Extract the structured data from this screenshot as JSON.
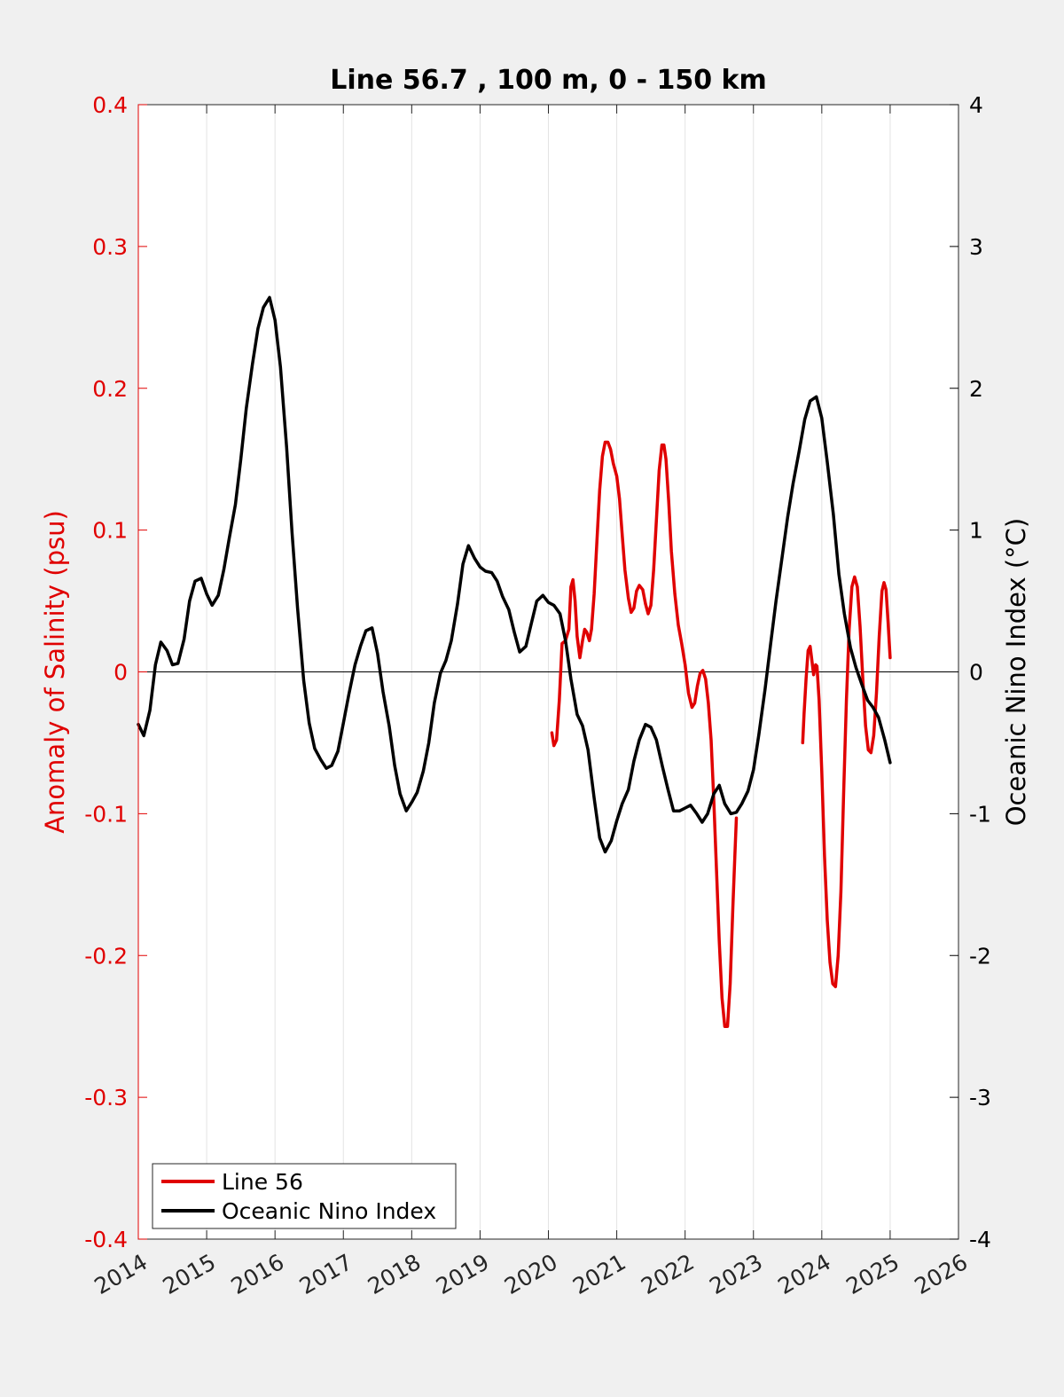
{
  "chart_data": {
    "type": "line",
    "title": "Line 56.7 , 100 m, 0 - 150 km",
    "xlabel": "",
    "ylabel_left": "Anomaly of Salinity (psu)",
    "ylabel_right": "Oceanic Nino Index (°C)",
    "xlim": [
      2014,
      2026
    ],
    "ylim_left": [
      -0.4,
      0.4
    ],
    "ylim_right": [
      -4,
      4
    ],
    "x_ticks": [
      "2014",
      "2015",
      "2016",
      "2017",
      "2018",
      "2019",
      "2020",
      "2021",
      "2022",
      "2023",
      "2024",
      "2025",
      "2026"
    ],
    "y_ticks_left": [
      "-0.4",
      "-0.3",
      "-0.2",
      "-0.1",
      "0",
      "0.1",
      "0.2",
      "0.3",
      "0.4"
    ],
    "y_ticks_right": [
      "-4",
      "-3",
      "-2",
      "-1",
      "0",
      "1",
      "2",
      "3",
      "4"
    ],
    "grid": "vertical",
    "zero_line": 0,
    "legend_position": "bottom-left",
    "colors": {
      "salinity": "#e00000",
      "oni": "#000000",
      "left_axis": "#e00000",
      "right_axis": "#000000"
    },
    "series": [
      {
        "name": "Line 56",
        "axis": "left",
        "segments": [
          [
            [
              2020.05,
              -0.043
            ],
            [
              2020.08,
              -0.052
            ],
            [
              2020.12,
              -0.048
            ],
            [
              2020.16,
              -0.02
            ],
            [
              2020.2,
              0.02
            ],
            [
              2020.25,
              0.022
            ],
            [
              2020.3,
              0.03
            ],
            [
              2020.33,
              0.06
            ],
            [
              2020.36,
              0.065
            ],
            [
              2020.39,
              0.05
            ],
            [
              2020.42,
              0.025
            ],
            [
              2020.46,
              0.01
            ],
            [
              2020.5,
              0.022
            ],
            [
              2020.53,
              0.03
            ],
            [
              2020.56,
              0.028
            ],
            [
              2020.6,
              0.022
            ],
            [
              2020.63,
              0.03
            ],
            [
              2020.67,
              0.055
            ],
            [
              2020.71,
              0.092
            ],
            [
              2020.75,
              0.128
            ],
            [
              2020.79,
              0.152
            ],
            [
              2020.83,
              0.162
            ],
            [
              2020.87,
              0.162
            ],
            [
              2020.91,
              0.157
            ],
            [
              2020.95,
              0.147
            ],
            [
              2021.0,
              0.138
            ],
            [
              2021.04,
              0.122
            ],
            [
              2021.08,
              0.097
            ],
            [
              2021.12,
              0.072
            ],
            [
              2021.17,
              0.052
            ],
            [
              2021.21,
              0.042
            ],
            [
              2021.25,
              0.045
            ],
            [
              2021.29,
              0.057
            ],
            [
              2021.33,
              0.061
            ],
            [
              2021.38,
              0.058
            ],
            [
              2021.42,
              0.048
            ],
            [
              2021.46,
              0.041
            ],
            [
              2021.5,
              0.047
            ],
            [
              2021.54,
              0.072
            ],
            [
              2021.58,
              0.107
            ],
            [
              2021.62,
              0.142
            ],
            [
              2021.66,
              0.16
            ],
            [
              2021.69,
              0.16
            ],
            [
              2021.72,
              0.15
            ],
            [
              2021.76,
              0.12
            ],
            [
              2021.8,
              0.085
            ],
            [
              2021.85,
              0.055
            ],
            [
              2021.9,
              0.033
            ],
            [
              2021.95,
              0.02
            ],
            [
              2022.0,
              0.005
            ],
            [
              2022.05,
              -0.015
            ],
            [
              2022.1,
              -0.025
            ],
            [
              2022.14,
              -0.022
            ],
            [
              2022.18,
              -0.01
            ],
            [
              2022.22,
              -0.001
            ],
            [
              2022.26,
              0.001
            ],
            [
              2022.3,
              -0.005
            ],
            [
              2022.34,
              -0.022
            ],
            [
              2022.38,
              -0.048
            ],
            [
              2022.42,
              -0.09
            ],
            [
              2022.46,
              -0.14
            ],
            [
              2022.5,
              -0.19
            ],
            [
              2022.54,
              -0.23
            ],
            [
              2022.58,
              -0.25
            ],
            [
              2022.62,
              -0.25
            ],
            [
              2022.66,
              -0.22
            ],
            [
              2022.7,
              -0.165
            ],
            [
              2022.73,
              -0.128
            ],
            [
              2022.75,
              -0.103
            ]
          ],
          [
            [
              2023.72,
              -0.05
            ],
            [
              2023.74,
              -0.03
            ],
            [
              2023.77,
              -0.005
            ],
            [
              2023.8,
              0.015
            ],
            [
              2023.83,
              0.018
            ],
            [
              2023.85,
              0.01
            ],
            [
              2023.88,
              -0.002
            ],
            [
              2023.91,
              0.005
            ],
            [
              2023.93,
              0.004
            ],
            [
              2023.96,
              -0.02
            ],
            [
              2024.0,
              -0.07
            ],
            [
              2024.04,
              -0.13
            ],
            [
              2024.08,
              -0.175
            ],
            [
              2024.12,
              -0.205
            ],
            [
              2024.16,
              -0.22
            ],
            [
              2024.2,
              -0.222
            ],
            [
              2024.24,
              -0.2
            ],
            [
              2024.28,
              -0.155
            ],
            [
              2024.32,
              -0.085
            ],
            [
              2024.36,
              -0.02
            ],
            [
              2024.4,
              0.03
            ],
            [
              2024.44,
              0.06
            ],
            [
              2024.48,
              0.067
            ],
            [
              2024.52,
              0.06
            ],
            [
              2024.56,
              0.032
            ],
            [
              2024.6,
              -0.005
            ],
            [
              2024.64,
              -0.038
            ],
            [
              2024.68,
              -0.055
            ],
            [
              2024.72,
              -0.057
            ],
            [
              2024.76,
              -0.045
            ],
            [
              2024.8,
              -0.015
            ],
            [
              2024.84,
              0.025
            ],
            [
              2024.88,
              0.057
            ],
            [
              2024.91,
              0.063
            ],
            [
              2024.94,
              0.058
            ],
            [
              2024.97,
              0.035
            ],
            [
              2025.0,
              0.01
            ]
          ]
        ]
      },
      {
        "name": "Oceanic Nino Index",
        "axis": "right",
        "segments": [
          [
            [
              2014.0,
              -0.37
            ],
            [
              2014.08,
              -0.45
            ],
            [
              2014.17,
              -0.27
            ],
            [
              2014.25,
              0.05
            ],
            [
              2014.33,
              0.21
            ],
            [
              2014.42,
              0.15
            ],
            [
              2014.5,
              0.05
            ],
            [
              2014.58,
              0.06
            ],
            [
              2014.67,
              0.23
            ],
            [
              2014.75,
              0.5
            ],
            [
              2014.83,
              0.64
            ],
            [
              2014.92,
              0.66
            ],
            [
              2015.0,
              0.55
            ],
            [
              2015.08,
              0.47
            ],
            [
              2015.17,
              0.54
            ],
            [
              2015.25,
              0.72
            ],
            [
              2015.33,
              0.94
            ],
            [
              2015.42,
              1.18
            ],
            [
              2015.5,
              1.5
            ],
            [
              2015.58,
              1.86
            ],
            [
              2015.67,
              2.17
            ],
            [
              2015.75,
              2.42
            ],
            [
              2015.83,
              2.57
            ],
            [
              2015.92,
              2.64
            ],
            [
              2016.0,
              2.48
            ],
            [
              2016.08,
              2.15
            ],
            [
              2016.17,
              1.58
            ],
            [
              2016.25,
              0.98
            ],
            [
              2016.33,
              0.45
            ],
            [
              2016.42,
              -0.06
            ],
            [
              2016.5,
              -0.36
            ],
            [
              2016.58,
              -0.54
            ],
            [
              2016.67,
              -0.62
            ],
            [
              2016.75,
              -0.68
            ],
            [
              2016.83,
              -0.66
            ],
            [
              2016.92,
              -0.56
            ],
            [
              2017.0,
              -0.36
            ],
            [
              2017.08,
              -0.16
            ],
            [
              2017.17,
              0.05
            ],
            [
              2017.25,
              0.18
            ],
            [
              2017.33,
              0.29
            ],
            [
              2017.42,
              0.31
            ],
            [
              2017.5,
              0.13
            ],
            [
              2017.58,
              -0.14
            ],
            [
              2017.67,
              -0.38
            ],
            [
              2017.75,
              -0.66
            ],
            [
              2017.83,
              -0.86
            ],
            [
              2017.92,
              -0.98
            ],
            [
              2018.0,
              -0.92
            ],
            [
              2018.08,
              -0.85
            ],
            [
              2018.17,
              -0.7
            ],
            [
              2018.25,
              -0.5
            ],
            [
              2018.33,
              -0.22
            ],
            [
              2018.42,
              -0.01
            ],
            [
              2018.5,
              0.08
            ],
            [
              2018.58,
              0.22
            ],
            [
              2018.67,
              0.48
            ],
            [
              2018.75,
              0.76
            ],
            [
              2018.83,
              0.89
            ],
            [
              2018.92,
              0.8
            ],
            [
              2019.0,
              0.74
            ],
            [
              2019.08,
              0.71
            ],
            [
              2019.17,
              0.7
            ],
            [
              2019.25,
              0.64
            ],
            [
              2019.33,
              0.53
            ],
            [
              2019.42,
              0.44
            ],
            [
              2019.5,
              0.28
            ],
            [
              2019.58,
              0.14
            ],
            [
              2019.67,
              0.18
            ],
            [
              2019.75,
              0.34
            ],
            [
              2019.83,
              0.5
            ],
            [
              2019.92,
              0.54
            ],
            [
              2020.0,
              0.49
            ],
            [
              2020.08,
              0.47
            ],
            [
              2020.17,
              0.41
            ],
            [
              2020.25,
              0.22
            ],
            [
              2020.33,
              -0.05
            ],
            [
              2020.42,
              -0.3
            ],
            [
              2020.5,
              -0.38
            ],
            [
              2020.58,
              -0.55
            ],
            [
              2020.67,
              -0.89
            ],
            [
              2020.75,
              -1.17
            ],
            [
              2020.83,
              -1.27
            ],
            [
              2020.92,
              -1.19
            ],
            [
              2021.0,
              -1.05
            ],
            [
              2021.08,
              -0.93
            ],
            [
              2021.17,
              -0.83
            ],
            [
              2021.25,
              -0.63
            ],
            [
              2021.33,
              -0.48
            ],
            [
              2021.42,
              -0.37
            ],
            [
              2021.5,
              -0.39
            ],
            [
              2021.58,
              -0.48
            ],
            [
              2021.67,
              -0.67
            ],
            [
              2021.75,
              -0.83
            ],
            [
              2021.83,
              -0.98
            ],
            [
              2021.92,
              -0.98
            ],
            [
              2022.0,
              -0.96
            ],
            [
              2022.08,
              -0.94
            ],
            [
              2022.17,
              -1.0
            ],
            [
              2022.25,
              -1.06
            ],
            [
              2022.33,
              -1.0
            ],
            [
              2022.42,
              -0.86
            ],
            [
              2022.5,
              -0.8
            ],
            [
              2022.58,
              -0.93
            ],
            [
              2022.67,
              -1.0
            ],
            [
              2022.75,
              -0.99
            ],
            [
              2022.83,
              -0.93
            ],
            [
              2022.92,
              -0.84
            ],
            [
              2023.0,
              -0.69
            ],
            [
              2023.08,
              -0.44
            ],
            [
              2023.17,
              -0.12
            ],
            [
              2023.25,
              0.19
            ],
            [
              2023.33,
              0.5
            ],
            [
              2023.42,
              0.81
            ],
            [
              2023.5,
              1.09
            ],
            [
              2023.58,
              1.33
            ],
            [
              2023.67,
              1.56
            ],
            [
              2023.75,
              1.78
            ],
            [
              2023.83,
              1.91
            ],
            [
              2023.92,
              1.94
            ],
            [
              2024.0,
              1.79
            ],
            [
              2024.08,
              1.48
            ],
            [
              2024.17,
              1.11
            ],
            [
              2024.25,
              0.69
            ],
            [
              2024.33,
              0.41
            ],
            [
              2024.42,
              0.17
            ],
            [
              2024.5,
              0.03
            ],
            [
              2024.58,
              -0.08
            ],
            [
              2024.67,
              -0.2
            ],
            [
              2024.75,
              -0.25
            ],
            [
              2024.83,
              -0.32
            ],
            [
              2024.92,
              -0.48
            ],
            [
              2025.0,
              -0.64
            ]
          ]
        ]
      }
    ]
  }
}
